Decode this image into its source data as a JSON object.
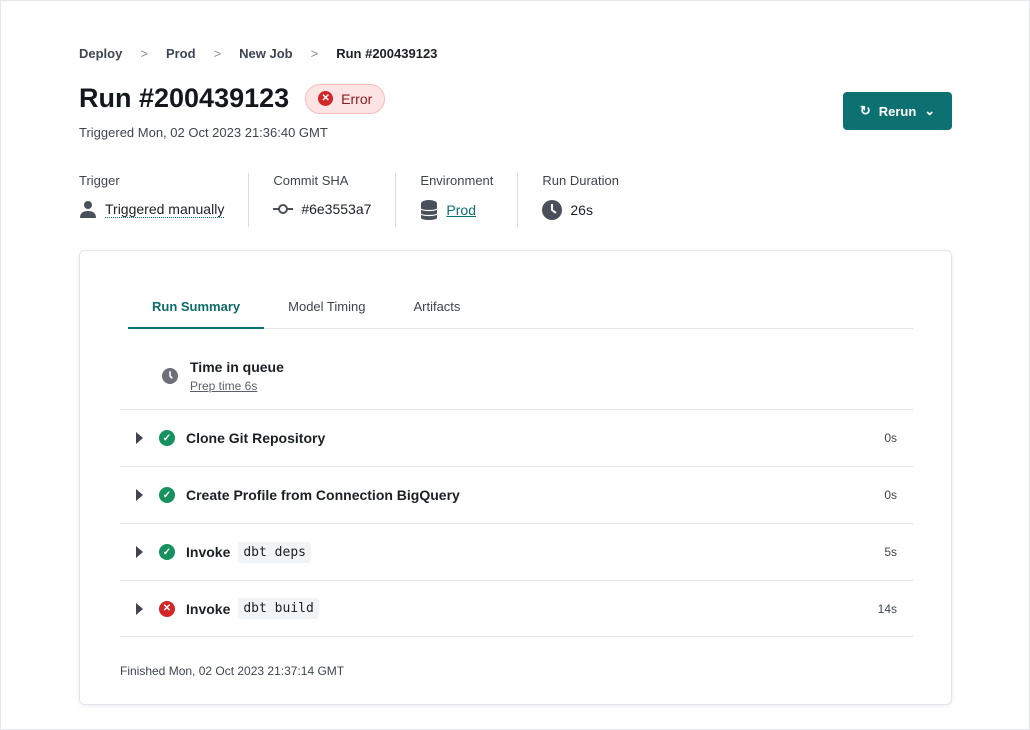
{
  "breadcrumb": [
    "Deploy",
    "Prod",
    "New Job",
    "Run #200439123"
  ],
  "title": "Run #200439123",
  "status": {
    "label": "Error",
    "color": "#d32626"
  },
  "triggered": "Triggered Mon, 02 Oct 2023 21:36:40 GMT",
  "rerun_label": "Rerun",
  "meta": {
    "trigger": {
      "label": "Trigger",
      "value": "Triggered manually",
      "icon": "user-icon"
    },
    "commit": {
      "label": "Commit SHA",
      "value": "#6e3553a7",
      "icon": "commit-icon"
    },
    "environment": {
      "label": "Environment",
      "value": "Prod",
      "icon": "database-icon"
    },
    "duration": {
      "label": "Run Duration",
      "value": "26s",
      "icon": "clock-icon"
    }
  },
  "tabs": [
    "Run Summary",
    "Model Timing",
    "Artifacts"
  ],
  "queue": {
    "title": "Time in queue",
    "prep": "Prep time 6s"
  },
  "steps": [
    {
      "name": "Clone Git Repository",
      "code": "",
      "duration": "0s",
      "status": "success"
    },
    {
      "name": "Create Profile from Connection BigQuery",
      "code": "",
      "duration": "0s",
      "status": "success"
    },
    {
      "name": "Invoke",
      "code": "dbt deps",
      "duration": "5s",
      "status": "success"
    },
    {
      "name": "Invoke",
      "code": "dbt build",
      "duration": "14s",
      "status": "error"
    }
  ],
  "finished": "Finished Mon, 02 Oct 2023 21:37:14 GMT"
}
